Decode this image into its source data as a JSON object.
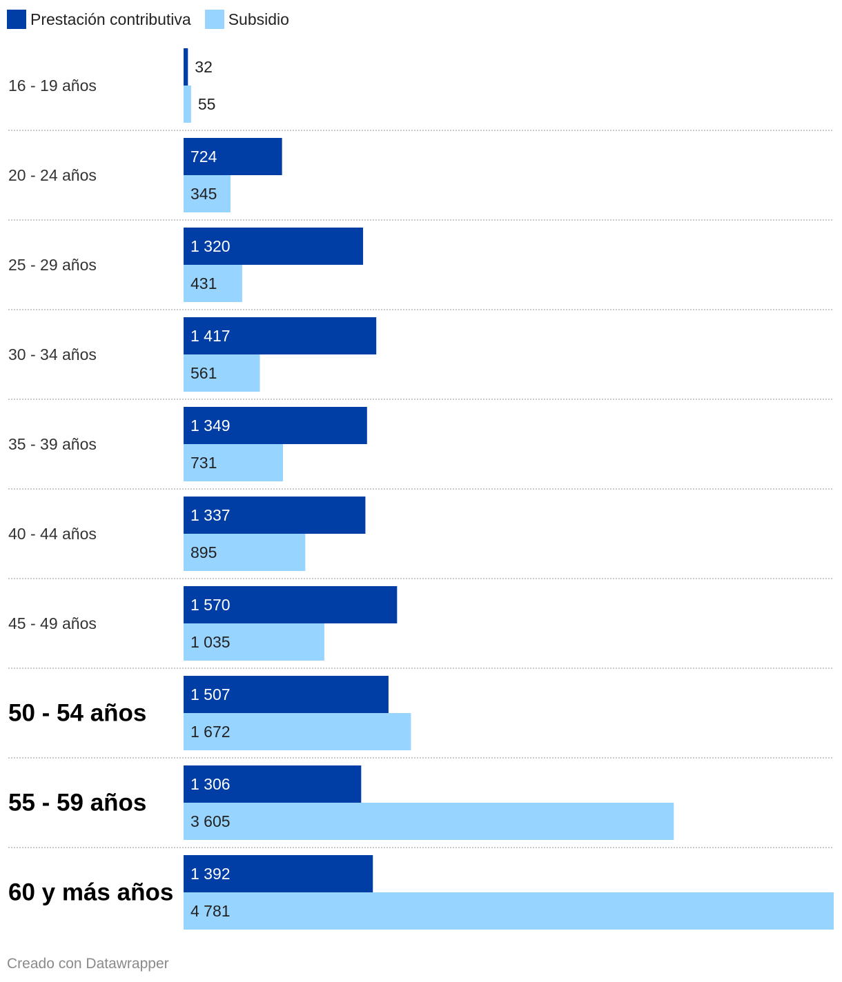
{
  "legend": {
    "items": [
      {
        "label": "Prestación contributiva",
        "color": "#003da5"
      },
      {
        "label": "Subsidio",
        "color": "#97d4ff"
      }
    ]
  },
  "chart_data": {
    "type": "bar",
    "orientation": "horizontal",
    "grouped": true,
    "categories": [
      "16 - 19 años",
      "20 - 24 años",
      "25 - 29 años",
      "30 - 34 años",
      "35 - 39 años",
      "40 - 44 años",
      "45 - 49 años",
      "50 - 54 años",
      "55 - 59 años",
      "60 y más años"
    ],
    "highlighted_categories": [
      "50 - 54 años",
      "55 - 59 años",
      "60 y más años"
    ],
    "series": [
      {
        "name": "Prestación contributiva",
        "color": "#003da5",
        "values": [
          32,
          724,
          1320,
          1417,
          1349,
          1337,
          1570,
          1507,
          1306,
          1392
        ],
        "labels": [
          "32",
          "724",
          "1 320",
          "1 417",
          "1 349",
          "1 337",
          "1 570",
          "1 507",
          "1 306",
          "1 392"
        ]
      },
      {
        "name": "Subsidio",
        "color": "#97d4ff",
        "values": [
          55,
          345,
          431,
          561,
          731,
          895,
          1035,
          1672,
          3605,
          4781
        ],
        "labels": [
          "55",
          "345",
          "431",
          "561",
          "731",
          "895",
          "1 035",
          "1 672",
          "3 605",
          "4 781"
        ]
      }
    ],
    "xlim": [
      0,
      4781
    ],
    "grid": false,
    "legend_position": "top-left",
    "row_separators": "dotted"
  },
  "footer": {
    "credit": "Creado con Datawrapper"
  }
}
